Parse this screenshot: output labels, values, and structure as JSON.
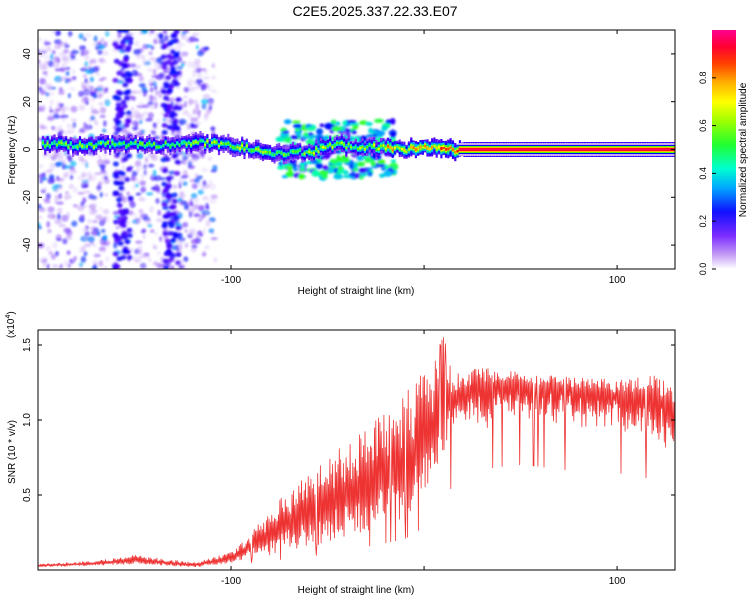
{
  "title": "C2E5.2025.337.22.33.E07",
  "chart_data": [
    {
      "type": "heatmap",
      "xlabel": "Height of straight line (km)",
      "ylabel": "Frequency (Hz)",
      "xlim": [
        -200,
        130
      ],
      "ylim": [
        -50,
        50
      ],
      "xticks": [
        -100,
        0,
        100
      ],
      "xtick_labels": [
        "-100",
        "",
        "100"
      ],
      "yticks": [
        -40,
        -20,
        0,
        20,
        40
      ],
      "ytick_labels": [
        "-40",
        "-20",
        "0",
        "20",
        "40"
      ],
      "colorbar": {
        "label": "Normalized spectral amplitude",
        "range": [
          0,
          1
        ],
        "ticks": [
          0.0,
          0.2,
          0.4,
          0.6,
          0.8
        ],
        "tick_labels": [
          "0.0",
          "0.2",
          "0.4",
          "0.6",
          "0.8"
        ],
        "colors": [
          "#ffffff",
          "#a56cf2",
          "#5000ff",
          "#0000ff",
          "#00b4ff",
          "#00ffb0",
          "#3cff00",
          "#b4ff00",
          "#ffff00",
          "#ffb400",
          "#ff4000",
          "#ff0000",
          "#ff0090"
        ]
      },
      "band": {
        "x": [
          -195,
          -180,
          -160,
          -140,
          -120,
          -100,
          -80,
          -60,
          -45,
          -30,
          -20,
          -10,
          0,
          10,
          20,
          40,
          60,
          80,
          100,
          130
        ],
        "center_hz": [
          2,
          2,
          2,
          2,
          3,
          2,
          -2,
          -1,
          2,
          1,
          1,
          0,
          1,
          0,
          0,
          0,
          0,
          0,
          0,
          0
        ],
        "amplitude": [
          0.55,
          0.55,
          0.5,
          0.5,
          0.55,
          0.6,
          0.55,
          0.6,
          0.6,
          0.55,
          0.75,
          0.7,
          0.75,
          0.85,
          0.9,
          0.9,
          0.9,
          0.9,
          0.9,
          0.9
        ]
      }
    },
    {
      "type": "line",
      "xlabel": "Height of straight line (km)",
      "ylabel": "SNR (10 * v/v)",
      "y_multiplier": "(x10^4)",
      "y_multiplier_base": "(x10",
      "y_multiplier_exp": "4",
      "y_multiplier_close": ")",
      "xlim": [
        -200,
        130
      ],
      "ylim": [
        0,
        1.6
      ],
      "xticks": [
        -100,
        0,
        100
      ],
      "xtick_labels": [
        "-100",
        "",
        "100"
      ],
      "yticks": [
        0.5,
        1.0,
        1.5
      ],
      "ytick_labels": [
        "0.5",
        "1.0",
        "1.5"
      ],
      "color": "#ee3333",
      "envelope": {
        "x": [
          -200,
          -170,
          -150,
          -120,
          -110,
          -100,
          -90,
          -80,
          -70,
          -60,
          -50,
          -40,
          -30,
          -20,
          -10,
          -5,
          0,
          5,
          10,
          15,
          20,
          30,
          40,
          50,
          60,
          70,
          80,
          90,
          100,
          110,
          120,
          130
        ],
        "base": [
          0.02,
          0.03,
          0.04,
          0.02,
          0.03,
          0.05,
          0.08,
          0.1,
          0.13,
          0.15,
          0.18,
          0.22,
          0.26,
          0.3,
          0.35,
          0.4,
          0.5,
          0.6,
          0.75,
          0.95,
          1.05,
          1.12,
          1.15,
          1.17,
          1.15,
          1.12,
          1.1,
          1.1,
          1.08,
          1.05,
          1.0,
          0.95
        ],
        "peak": [
          0.04,
          0.06,
          0.1,
          0.05,
          0.08,
          0.12,
          0.25,
          0.38,
          0.55,
          0.65,
          0.75,
          0.85,
          0.95,
          1.05,
          1.2,
          1.25,
          1.35,
          1.42,
          1.55,
          1.35,
          1.33,
          1.35,
          1.33,
          1.33,
          1.3,
          1.3,
          1.28,
          1.28,
          1.26,
          1.3,
          1.32,
          1.2
        ]
      }
    }
  ]
}
